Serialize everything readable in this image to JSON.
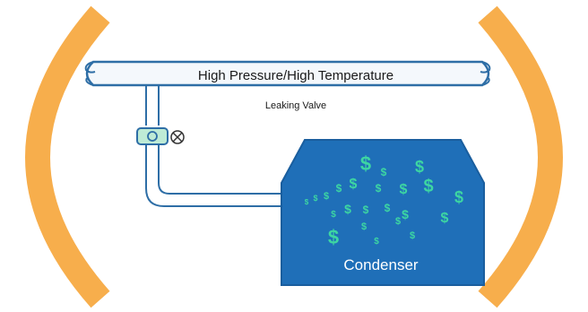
{
  "diagram": {
    "pipe_label": "High Pressure/High Temperature",
    "valve_label": "Leaking Valve",
    "condenser_label": "Condenser",
    "money_symbol": "$"
  },
  "colors": {
    "bracket": "#F7AE4C",
    "pipe_outline": "#2E6EA6",
    "pipe_fill": "#F4F8FC",
    "condenser_fill": "#1F6FB8",
    "condenser_stroke": "#1A5E9E",
    "dollar": "#3DD6A2",
    "valve_fill": "#BEEBD6"
  },
  "icons": {
    "left_bracket": "orange-left-paren",
    "right_bracket": "orange-right-paren",
    "valve": "valve-icon",
    "leak_marker": "circled-x-icon"
  }
}
